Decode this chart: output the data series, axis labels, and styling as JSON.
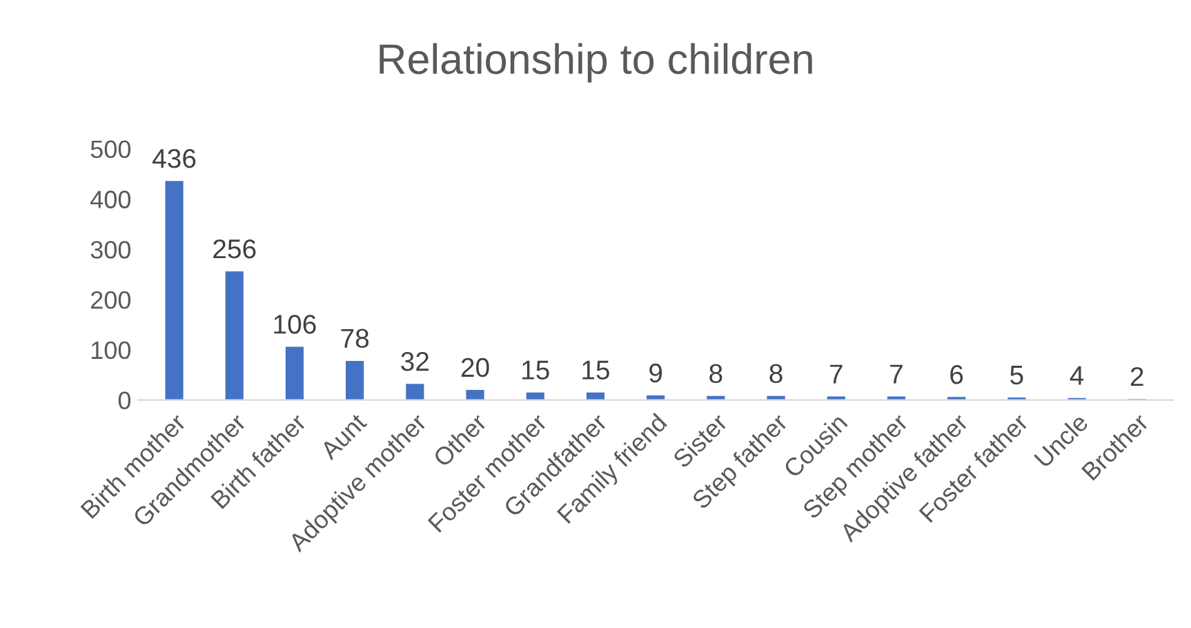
{
  "chart_data": {
    "type": "bar",
    "title": "Relationship to children",
    "categories": [
      "Birth mother",
      "Grandmother",
      "Birth father",
      "Aunt",
      "Adoptive mother",
      "Other",
      "Foster mother",
      "Grandfather",
      "Family friend",
      "Sister",
      "Step father",
      "Cousin",
      "Step mother",
      "Adoptive father",
      "Foster father",
      "Uncle",
      "Brother"
    ],
    "values": [
      436,
      256,
      106,
      78,
      32,
      20,
      15,
      15,
      9,
      8,
      8,
      7,
      7,
      6,
      5,
      4,
      2
    ],
    "color": "#4472c4",
    "ylim": [
      0,
      500
    ],
    "yticks": [
      0,
      100,
      200,
      300,
      400,
      500
    ],
    "grid": false,
    "data_labels": true
  }
}
